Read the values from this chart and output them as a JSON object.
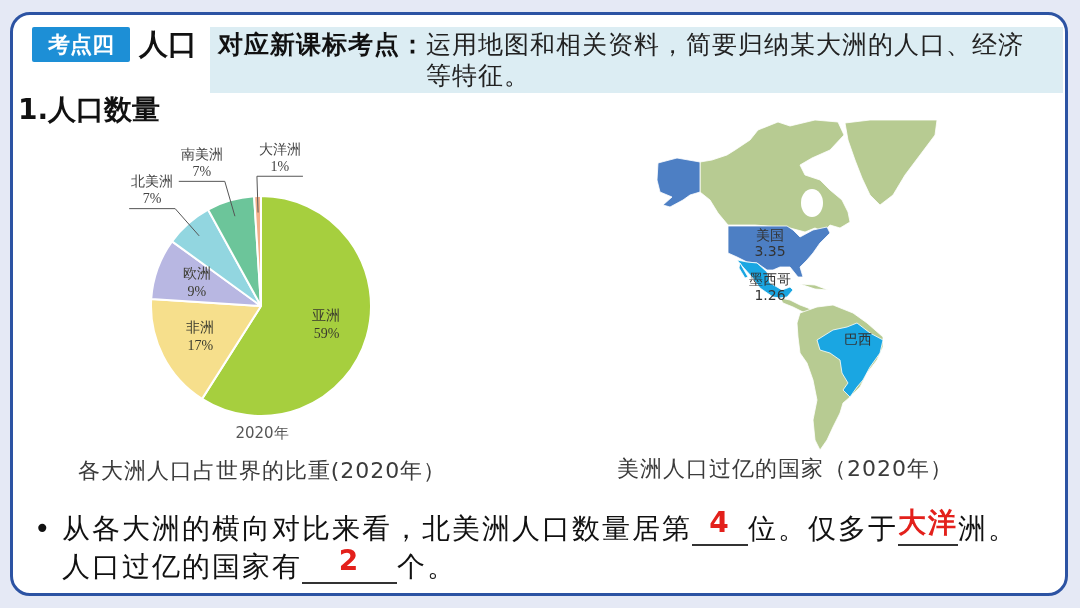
{
  "chart_data": [
    {
      "type": "pie",
      "title": "各大洲人口占世界的比重(2020年）",
      "categories": [
        "亚洲",
        "非洲",
        "欧洲",
        "北美洲",
        "南美洲",
        "大洋洲"
      ],
      "values": [
        59,
        17,
        9,
        7,
        7,
        1
      ],
      "value_labels": [
        "59%",
        "17%",
        "9%",
        "7%",
        "7%",
        "1%"
      ],
      "colors": [
        "#a6cf3e",
        "#f6df8c",
        "#b8b7e2",
        "#92d6e0",
        "#6cc59a",
        "#f3b08a"
      ],
      "annotations": [
        "考点四",
        "人口",
        "对应新课标考点：",
        "运用地图和相关资料，简要归纳某大洲的人口、经济等特征。",
        "1.人口数量",
        "2020年",
        "•",
        "从各大洲的横向对比来看，北美洲人口数量居第",
        "4",
        "位。仅多于",
        "大洋",
        "洲。",
        "人口过亿的国家有",
        "2",
        "个。"
      ]
    },
    {
      "type": "other",
      "title": "美洲人口过亿的国家（2020年）",
      "categories": [
        "美国",
        "墨西哥",
        "巴西"
      ],
      "values": [
        3.35,
        1.26,
        null
      ],
      "colors": [
        "#4d7fc4",
        "#1aa6e2",
        "#1aa6e2"
      ],
      "data_labels": true
    }
  ]
}
